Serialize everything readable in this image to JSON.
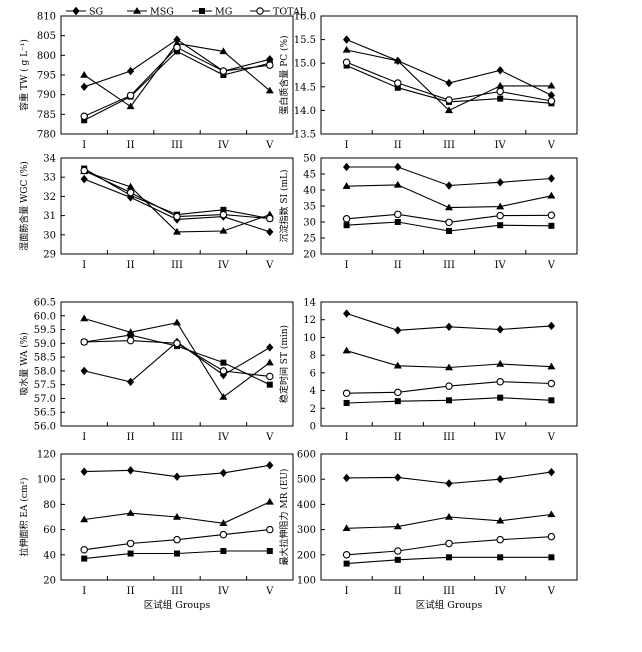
{
  "chart_data": [
    {
      "type": "line",
      "id": "tw",
      "categories": [
        "I",
        "II",
        "III",
        "IV",
        "V"
      ],
      "ylabel": "容重 TW ( g L⁻¹)",
      "xlabel": "",
      "ylim": [
        780,
        810
      ],
      "yticks": [
        "780",
        "785",
        "790",
        "795",
        "800",
        "805",
        "810"
      ],
      "legend_position": "top",
      "series": [
        {
          "name": "SG",
          "marker": "diamond",
          "values": [
            792,
            796,
            804,
            796,
            799
          ]
        },
        {
          "name": "MSG",
          "marker": "triangle",
          "values": [
            795,
            787,
            803,
            801,
            791
          ]
        },
        {
          "name": "MG",
          "marker": "square",
          "values": [
            783.5,
            789.5,
            801,
            795,
            798
          ]
        },
        {
          "name": "TOTAL",
          "marker": "circle",
          "values": [
            784.5,
            789.8,
            802,
            796,
            797.5
          ]
        }
      ]
    },
    {
      "type": "line",
      "id": "pc",
      "categories": [
        "I",
        "II",
        "III",
        "IV",
        "V"
      ],
      "ylabel": "蛋白质含量 PC (%)",
      "xlabel": "",
      "ylim": [
        13.5,
        16.0
      ],
      "yticks": [
        "13.5",
        "14.0",
        "14.5",
        "15.0",
        "15.5",
        "16.0"
      ],
      "series": [
        {
          "name": "SG",
          "marker": "diamond",
          "values": [
            15.5,
            15.05,
            14.58,
            14.85,
            14.32
          ]
        },
        {
          "name": "MSG",
          "marker": "triangle",
          "values": [
            15.28,
            15.05,
            14.0,
            14.52,
            14.52
          ]
        },
        {
          "name": "MG",
          "marker": "square",
          "values": [
            14.95,
            14.48,
            14.18,
            14.25,
            14.15
          ]
        },
        {
          "name": "TOTAL",
          "marker": "circle",
          "values": [
            15.02,
            14.58,
            14.22,
            14.4,
            14.2
          ]
        }
      ]
    },
    {
      "type": "line",
      "id": "wgc",
      "categories": [
        "I",
        "II",
        "III",
        "IV",
        "V"
      ],
      "ylabel": "湿面筋含量 WGC (%)",
      "xlabel": "",
      "ylim": [
        29,
        34
      ],
      "yticks": [
        "29",
        "30",
        "31",
        "32",
        "33",
        "34"
      ],
      "series": [
        {
          "name": "SG",
          "marker": "diamond",
          "values": [
            32.9,
            31.95,
            30.8,
            30.95,
            30.15
          ]
        },
        {
          "name": "MSG",
          "marker": "triangle",
          "values": [
            33.3,
            32.5,
            30.15,
            30.2,
            31.05
          ]
        },
        {
          "name": "MG",
          "marker": "square",
          "values": [
            33.45,
            32.05,
            31.05,
            31.3,
            30.85
          ]
        },
        {
          "name": "TOTAL",
          "marker": "circle",
          "values": [
            33.35,
            32.2,
            30.95,
            31.05,
            30.85
          ]
        }
      ]
    },
    {
      "type": "line",
      "id": "si",
      "categories": [
        "I",
        "II",
        "III",
        "IV",
        "V"
      ],
      "ylabel": "沉淀指数 SI (mL)",
      "xlabel": "",
      "ylim": [
        20,
        50
      ],
      "yticks": [
        "20",
        "25",
        "30",
        "35",
        "40",
        "45",
        "50"
      ],
      "series": [
        {
          "name": "SG",
          "marker": "diamond",
          "values": [
            47.2,
            47.2,
            41.4,
            42.4,
            43.6
          ]
        },
        {
          "name": "MSG",
          "marker": "triangle",
          "values": [
            41.2,
            41.6,
            34.5,
            34.8,
            38.2
          ]
        },
        {
          "name": "MG",
          "marker": "square",
          "values": [
            29.0,
            30.0,
            27.2,
            29.0,
            28.8
          ]
        },
        {
          "name": "TOTAL",
          "marker": "circle",
          "values": [
            31.0,
            32.4,
            29.9,
            32.0,
            32.1
          ]
        }
      ]
    },
    {
      "type": "line",
      "id": "wa",
      "categories": [
        "I",
        "II",
        "III",
        "IV",
        "V"
      ],
      "ylabel": "吸水量 WA (%)",
      "xlabel": "",
      "ylim": [
        56.0,
        60.5
      ],
      "yticks": [
        "56.0",
        "56.5",
        "57.0",
        "57.5",
        "58.0",
        "58.5",
        "59.0",
        "59.5",
        "60.0",
        "60.5"
      ],
      "series": [
        {
          "name": "SG",
          "marker": "diamond",
          "values": [
            58.0,
            57.6,
            59.05,
            57.85,
            58.85
          ]
        },
        {
          "name": "MSG",
          "marker": "triangle",
          "values": [
            59.9,
            59.4,
            59.75,
            57.05,
            58.3
          ]
        },
        {
          "name": "MG",
          "marker": "square",
          "values": [
            59.05,
            59.3,
            58.9,
            58.3,
            57.5
          ]
        },
        {
          "name": "TOTAL",
          "marker": "circle",
          "values": [
            59.05,
            59.1,
            59.0,
            58.0,
            57.8
          ]
        }
      ]
    },
    {
      "type": "line",
      "id": "st",
      "categories": [
        "I",
        "II",
        "III",
        "IV",
        "V"
      ],
      "ylabel": "稳定时间 ST (min)",
      "xlabel": "",
      "ylim": [
        0,
        14
      ],
      "yticks": [
        "0",
        "2",
        "4",
        "6",
        "8",
        "10",
        "12",
        "14"
      ],
      "series": [
        {
          "name": "SG",
          "marker": "diamond",
          "values": [
            12.7,
            10.8,
            11.2,
            10.9,
            11.3
          ]
        },
        {
          "name": "MSG",
          "marker": "triangle",
          "values": [
            8.5,
            6.8,
            6.6,
            7.0,
            6.7
          ]
        },
        {
          "name": "MG",
          "marker": "square",
          "values": [
            2.6,
            2.8,
            2.9,
            3.2,
            2.9
          ]
        },
        {
          "name": "TOTAL",
          "marker": "circle",
          "values": [
            3.7,
            3.8,
            4.5,
            5.0,
            4.8
          ]
        }
      ]
    },
    {
      "type": "line",
      "id": "ea",
      "categories": [
        "I",
        "II",
        "III",
        "IV",
        "V"
      ],
      "ylabel": "拉伸面积 EA (cm²)",
      "xlabel": "区试组 Groups",
      "ylim": [
        20,
        120
      ],
      "yticks": [
        "20",
        "40",
        "60",
        "80",
        "100",
        "120"
      ],
      "series": [
        {
          "name": "SG",
          "marker": "diamond",
          "values": [
            106,
            107,
            102,
            105,
            111
          ]
        },
        {
          "name": "MSG",
          "marker": "triangle",
          "values": [
            68,
            73,
            70,
            65,
            82
          ]
        },
        {
          "name": "MG",
          "marker": "square",
          "values": [
            37,
            41,
            41,
            43,
            43
          ]
        },
        {
          "name": "TOTAL",
          "marker": "circle",
          "values": [
            44,
            49,
            52,
            56,
            60
          ]
        }
      ]
    },
    {
      "type": "line",
      "id": "mr",
      "categories": [
        "I",
        "II",
        "III",
        "IV",
        "V"
      ],
      "ylabel": "最大拉伸阻力 MR (EU)",
      "xlabel": "区试组 Groups",
      "ylim": [
        100,
        600
      ],
      "yticks": [
        "100",
        "200",
        "300",
        "400",
        "500",
        "600"
      ],
      "series": [
        {
          "name": "SG",
          "marker": "diamond",
          "values": [
            505,
            507,
            483,
            500,
            528
          ]
        },
        {
          "name": "MSG",
          "marker": "triangle",
          "values": [
            305,
            312,
            350,
            335,
            360
          ]
        },
        {
          "name": "MG",
          "marker": "square",
          "values": [
            165,
            180,
            190,
            190,
            190
          ]
        },
        {
          "name": "TOTAL",
          "marker": "circle",
          "values": [
            200,
            215,
            245,
            260,
            272
          ]
        }
      ]
    }
  ]
}
